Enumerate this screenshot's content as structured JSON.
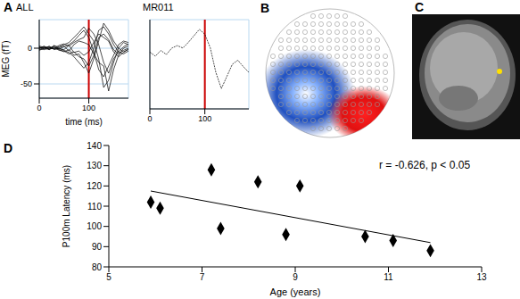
{
  "chart_data": [
    {
      "panel_label": "A",
      "title": "ALL",
      "type": "line",
      "x_label": "time (ms)",
      "y_label": "MEG (fT)",
      "x": [
        0,
        10,
        20,
        30,
        40,
        50,
        60,
        70,
        80,
        90,
        100,
        110,
        120,
        130,
        140,
        150,
        160,
        170,
        180
      ],
      "series": [
        {
          "color": "#000000",
          "values": [
            0,
            3,
            -2,
            4,
            -1,
            2,
            5,
            10,
            18,
            25,
            15,
            -5,
            -30,
            -40,
            -25,
            -10,
            5,
            10,
            8
          ]
        },
        {
          "color": "#000000",
          "values": [
            2,
            -1,
            3,
            -2,
            0,
            -3,
            -6,
            -12,
            -20,
            -28,
            -20,
            0,
            25,
            30,
            20,
            5,
            -5,
            -8,
            -4
          ]
        },
        {
          "color": "#000000",
          "values": [
            -2,
            1,
            0,
            3,
            2,
            5,
            8,
            15,
            22,
            30,
            20,
            10,
            -15,
            -55,
            -45,
            -20,
            0,
            8,
            5
          ]
        },
        {
          "color": "#000000",
          "values": [
            1,
            0,
            -2,
            1,
            -3,
            -4,
            -8,
            -5,
            -12,
            -15,
            -25,
            -10,
            15,
            20,
            12,
            -2,
            -8,
            -3,
            0
          ]
        },
        {
          "color": "#000000",
          "values": [
            0,
            2,
            1,
            -1,
            4,
            6,
            3,
            8,
            12,
            15,
            28,
            20,
            5,
            -20,
            -35,
            -15,
            -5,
            2,
            6
          ]
        },
        {
          "color": "#000000",
          "values": [
            -1,
            -2,
            0,
            2,
            -2,
            -5,
            -2,
            -10,
            -8,
            -20,
            -35,
            -15,
            10,
            35,
            25,
            10,
            0,
            -5,
            -2
          ]
        },
        {
          "color": "#000000",
          "values": [
            3,
            1,
            -1,
            0,
            1,
            3,
            -4,
            5,
            10,
            8,
            5,
            -8,
            -20,
            -25,
            -60,
            -30,
            -10,
            0,
            3
          ]
        },
        {
          "color": "#000000",
          "values": [
            -3,
            0,
            2,
            -1,
            -1,
            -2,
            4,
            -6,
            -4,
            -10,
            -5,
            8,
            20,
            15,
            10,
            -5,
            -12,
            -6,
            -1
          ]
        }
      ],
      "xlim": [
        0,
        180
      ],
      "xticks": [
        0,
        100
      ],
      "ylim": [
        -70,
        40
      ],
      "yticks": [
        -50,
        0
      ],
      "grid": true,
      "annotations": [
        {
          "type": "vline",
          "x": 100,
          "color": "#cc0000"
        }
      ]
    },
    {
      "title": "MR011",
      "type": "line",
      "x": [
        0,
        10,
        20,
        30,
        40,
        50,
        60,
        70,
        80,
        90,
        100,
        110,
        120,
        130,
        140,
        150,
        160,
        170,
        180
      ],
      "series": [
        {
          "color": "#000000",
          "line_style": "dotted",
          "values": [
            0,
            -5,
            2,
            -3,
            5,
            8,
            5,
            12,
            20,
            28,
            22,
            5,
            -25,
            -45,
            -30,
            -15,
            -10,
            -18,
            -25
          ]
        }
      ],
      "xlim": [
        0,
        180
      ],
      "xticks": [
        0,
        100
      ],
      "ylim": [
        -70,
        40
      ],
      "yticks": [
        -50,
        0
      ],
      "grid": true,
      "tick_labels": "x",
      "annotations": [
        {
          "type": "vline",
          "x": 100,
          "color": "#cc0000"
        }
      ]
    },
    {
      "panel_label": "D",
      "type": "scatter",
      "x_label": "Age (years)",
      "y_label": "P100m Latency (ms)",
      "x": [
        5.9,
        6.1,
        7.2,
        7.4,
        8.2,
        8.8,
        9.1,
        10.5,
        11.1,
        11.9
      ],
      "values": [
        112,
        109,
        128,
        99,
        122,
        96,
        120,
        95,
        93,
        88
      ],
      "color": "#000000",
      "marker": "diamond",
      "fit": {
        "x": [
          5.9,
          11.9
        ],
        "y": [
          117.5,
          92
        ]
      },
      "xlim": [
        5,
        13
      ],
      "xticks": [
        5,
        7,
        9,
        11,
        13
      ],
      "ylim": [
        80,
        140
      ],
      "yticks": [
        80,
        90,
        100,
        110,
        120,
        130,
        140
      ],
      "grid": false,
      "annotations": [
        {
          "type": "text",
          "text": "r = -0.626, p < 0.05"
        }
      ]
    }
  ],
  "images": [
    {
      "panel_label": "B"
    },
    {
      "panel_label": "C"
    }
  ]
}
